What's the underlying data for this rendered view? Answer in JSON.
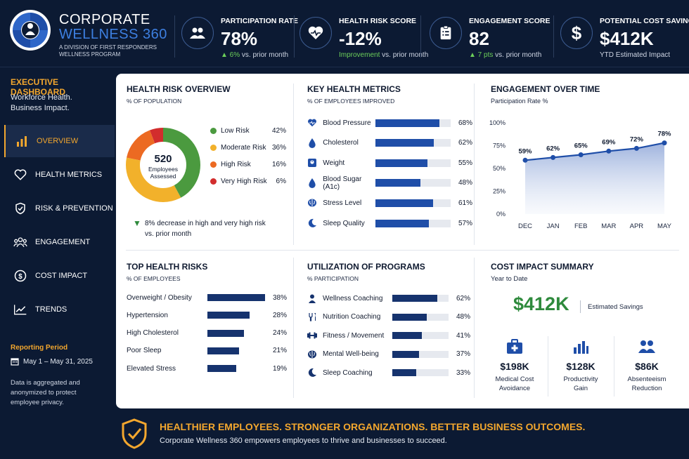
{
  "brand": {
    "line1": "CORPORATE",
    "line2": "WELLNESS 360",
    "subtitle": "A DIVISION OF FIRST RESPONDERS WELLNESS PROGRAM"
  },
  "kpis": [
    {
      "icon": "people-icon",
      "title": "PARTICIPATION RATE",
      "value": "78%",
      "delta": "▲ 6%",
      "suffix": " vs. prior month"
    },
    {
      "icon": "heart-pulse-icon",
      "title": "HEALTH RISK SCORE",
      "value": "-12%",
      "delta": "Improvement",
      "suffix": " vs. prior month"
    },
    {
      "icon": "clipboard-icon",
      "title": "ENGAGEMENT SCORE",
      "value": "82",
      "delta": "▲ 7 pts",
      "suffix": " vs. prior month"
    },
    {
      "icon": "dollar-icon",
      "title": "POTENTIAL COST SAVINGS",
      "value": "$412K",
      "delta": "",
      "suffix": "YTD Estimated Impact"
    }
  ],
  "sidebar": {
    "title": "EXECUTIVE DASHBOARD",
    "tagline1": "Workforce Health.",
    "tagline2": "Business Impact.",
    "items": [
      {
        "label": "OVERVIEW",
        "icon": "bar-chart-icon",
        "active": true
      },
      {
        "label": "HEALTH METRICS",
        "icon": "heart-icon",
        "active": false
      },
      {
        "label": "RISK & PREVENTION",
        "icon": "shield-check-icon",
        "active": false
      },
      {
        "label": "ENGAGEMENT",
        "icon": "group-icon",
        "active": false
      },
      {
        "label": "COST IMPACT",
        "icon": "dollar-circle-icon",
        "active": false
      },
      {
        "label": "TRENDS",
        "icon": "trend-icon",
        "active": false
      }
    ],
    "reporting_title": "Reporting Period",
    "reporting_dates": "May 1 – May 31, 2025",
    "privacy_note": "Data is aggregated and anonymized to protect employee privacy."
  },
  "health_risk_overview": {
    "title": "HEALTH RISK OVERVIEW",
    "subtitle": "% OF POPULATION",
    "center_value": "520",
    "center_label1": "Employees",
    "center_label2": "Assessed",
    "segments": [
      {
        "label": "Low Risk",
        "value": "42%",
        "pct": 42,
        "color": "#4b9a3f"
      },
      {
        "label": "Moderate Risk",
        "value": "36%",
        "pct": 36,
        "color": "#f2b12b"
      },
      {
        "label": "High Risk",
        "value": "16%",
        "pct": 16,
        "color": "#ec6a22"
      },
      {
        "label": "Very High Risk",
        "value": "6%",
        "pct": 6,
        "color": "#d22d2d"
      }
    ],
    "note1": "8% decrease in high and very high risk",
    "note2": "vs. prior month"
  },
  "key_metrics": {
    "title": "KEY HEALTH METRICS",
    "subtitle": "% OF EMPLOYEES IMPROVED",
    "rows": [
      {
        "label": "Blood Pressure",
        "value": "68%",
        "pct": 0.68,
        "icon": "heart-icon"
      },
      {
        "label": "Cholesterol",
        "value": "62%",
        "pct": 0.62,
        "icon": "droplet-icon"
      },
      {
        "label": "Weight",
        "value": "55%",
        "pct": 0.55,
        "icon": "scale-icon"
      },
      {
        "label": "Blood Sugar (A1c)",
        "value": "48%",
        "pct": 0.48,
        "icon": "droplet-icon"
      },
      {
        "label": "Stress Level",
        "value": "61%",
        "pct": 0.61,
        "icon": "brain-icon"
      },
      {
        "label": "Sleep Quality",
        "value": "57%",
        "pct": 0.57,
        "icon": "moon-icon"
      }
    ]
  },
  "engagement": {
    "title": "ENGAGEMENT OVER TIME",
    "subtitle": "Participation Rate %"
  },
  "top_risks": {
    "title": "TOP HEALTH RISKS",
    "subtitle": "% OF EMPLOYEES",
    "rows": [
      {
        "label": "Overweight / Obesity",
        "value": "38%",
        "pct": 0.38
      },
      {
        "label": "Hypertension",
        "value": "28%",
        "pct": 0.28
      },
      {
        "label": "High Cholesterol",
        "value": "24%",
        "pct": 0.24
      },
      {
        "label": "Poor Sleep",
        "value": "21%",
        "pct": 0.21
      },
      {
        "label": "Elevated Stress",
        "value": "19%",
        "pct": 0.19
      }
    ]
  },
  "programs": {
    "title": "UTILIZATION OF PROGRAMS",
    "subtitle": "% PARTICIPATION",
    "rows": [
      {
        "label": "Wellness Coaching",
        "value": "62%",
        "pct": 0.62,
        "icon": "person-icon"
      },
      {
        "label": "Nutrition Coaching",
        "value": "48%",
        "pct": 0.48,
        "icon": "fork-knife-icon"
      },
      {
        "label": "Fitness / Movement",
        "value": "41%",
        "pct": 0.41,
        "icon": "dumbbell-icon"
      },
      {
        "label": "Mental Well-being",
        "value": "37%",
        "pct": 0.37,
        "icon": "brain-icon"
      },
      {
        "label": "Sleep Coaching",
        "value": "33%",
        "pct": 0.33,
        "icon": "moon-icon"
      }
    ]
  },
  "cost_summary": {
    "title": "COST IMPACT SUMMARY",
    "subtitle": "Year to Date",
    "total": "$412K",
    "total_label": "Estimated Savings",
    "items": [
      {
        "value": "$198K",
        "label1": "Medical Cost",
        "label2": "Avoidance",
        "icon": "medical-kit-icon"
      },
      {
        "value": "$128K",
        "label1": "Productivity",
        "label2": "Gain",
        "icon": "bar-chart-icon"
      },
      {
        "value": "$86K",
        "label1": "Absenteeism",
        "label2": "Reduction",
        "icon": "group-icon"
      }
    ]
  },
  "footer": {
    "headline": "HEALTHIER EMPLOYEES. STRONGER ORGANIZATIONS. BETTER BUSINESS OUTCOMES.",
    "subline": "Corporate Wellness 360 empowers employees to thrive and businesses to succeed."
  },
  "chart_data": [
    {
      "type": "line",
      "x": [
        "DEC",
        "JAN",
        "FEB",
        "MAR",
        "APR",
        "MAY"
      ],
      "series": [
        {
          "values": [
            59,
            62,
            65,
            69,
            72,
            78
          ]
        }
      ],
      "data_labels": [
        "59%",
        "62%",
        "65%",
        "69%",
        "72%",
        "78%"
      ],
      "ylabel": "Participation Rate %",
      "yticks": [
        "0%",
        "25%",
        "50%",
        "75%",
        "100%"
      ],
      "ylim": [
        0,
        100
      ],
      "grid": false,
      "fill": "area",
      "color": "#1f4ea8"
    },
    {
      "type": "pie",
      "categories": [
        "Low Risk",
        "Moderate Risk",
        "High Risk",
        "Very High Risk"
      ],
      "values": [
        42,
        36,
        16,
        6
      ],
      "subtitle": "% OF POPULATION",
      "donut": true
    }
  ]
}
